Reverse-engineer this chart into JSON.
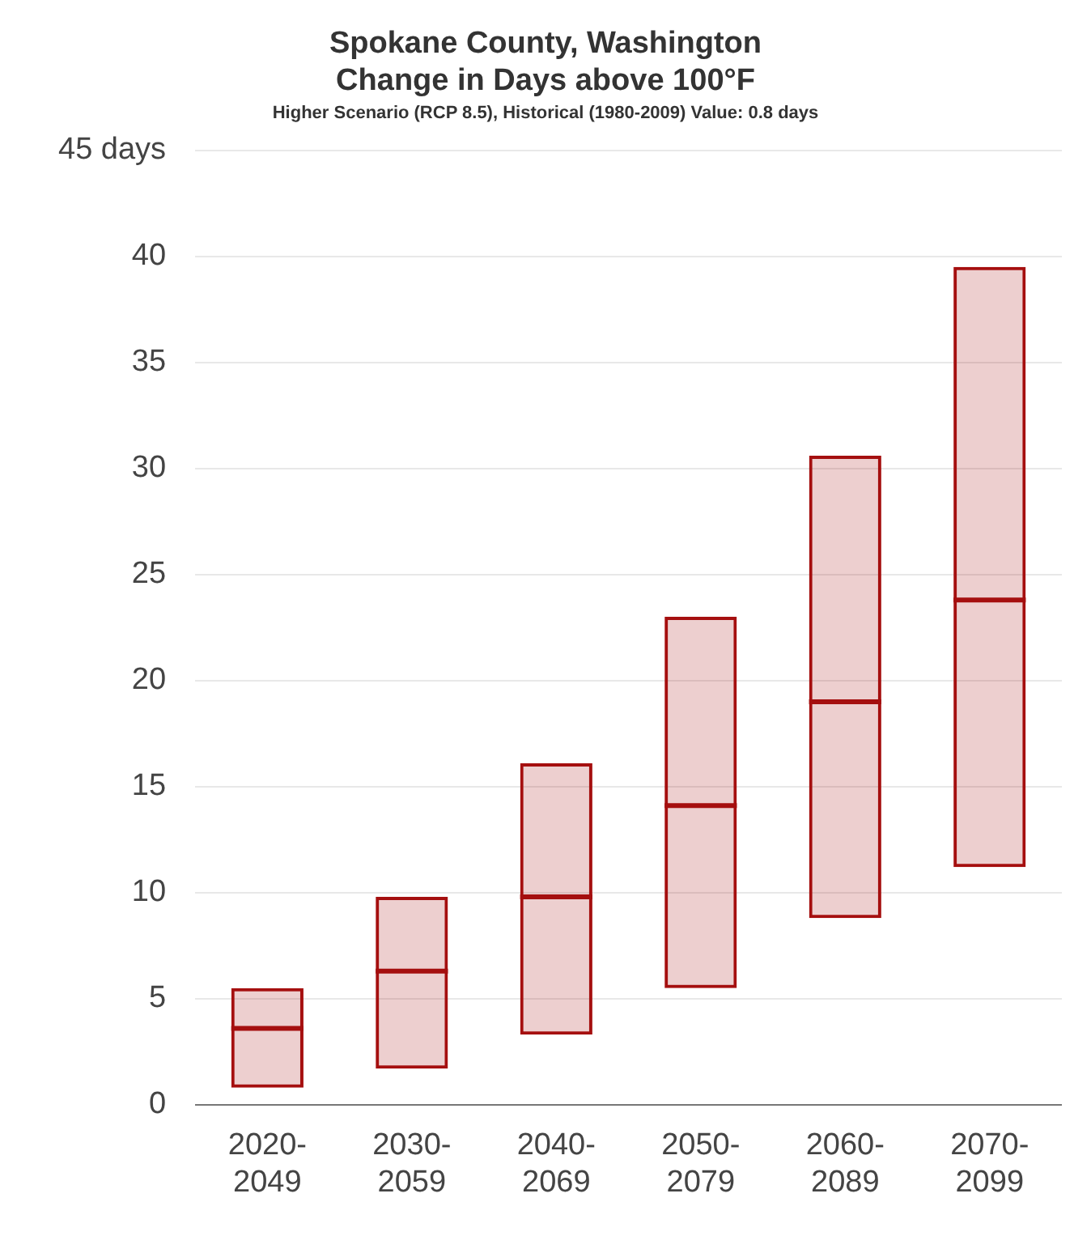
{
  "chart_data": {
    "type": "box",
    "title": "Spokane County, Washington\nChange in Days above 100°F",
    "subtitle": "Higher Scenario (RCP 8.5), Historical (1980-2009) Value: 0.8 days",
    "categories": [
      "2020-\n2049",
      "2030-\n2059",
      "2040-\n2069",
      "2050-\n2079",
      "2060-\n2089",
      "2070-\n2099"
    ],
    "color": "#a50f0f",
    "boxes": [
      {
        "low": 0.8,
        "q1": 0.8,
        "median": 3.6,
        "q3": 5.5,
        "high": 5.5
      },
      {
        "low": 1.7,
        "q1": 1.7,
        "median": 6.3,
        "q3": 9.8,
        "high": 9.8
      },
      {
        "low": 3.3,
        "q1": 3.3,
        "median": 9.8,
        "q3": 16.1,
        "high": 16.1
      },
      {
        "low": 5.5,
        "q1": 5.5,
        "median": 14.1,
        "q3": 23.0,
        "high": 23.0
      },
      {
        "low": 8.8,
        "q1": 8.8,
        "median": 19.0,
        "q3": 30.6,
        "high": 30.6
      },
      {
        "low": 11.2,
        "q1": 11.2,
        "median": 23.8,
        "q3": 39.5,
        "high": 39.5
      }
    ],
    "ylim": [
      0,
      45
    ],
    "yticks": [
      0,
      5,
      10,
      15,
      20,
      25,
      30,
      35,
      40,
      {
        "value": 45,
        "label": "45 days"
      }
    ],
    "grid": "y"
  }
}
